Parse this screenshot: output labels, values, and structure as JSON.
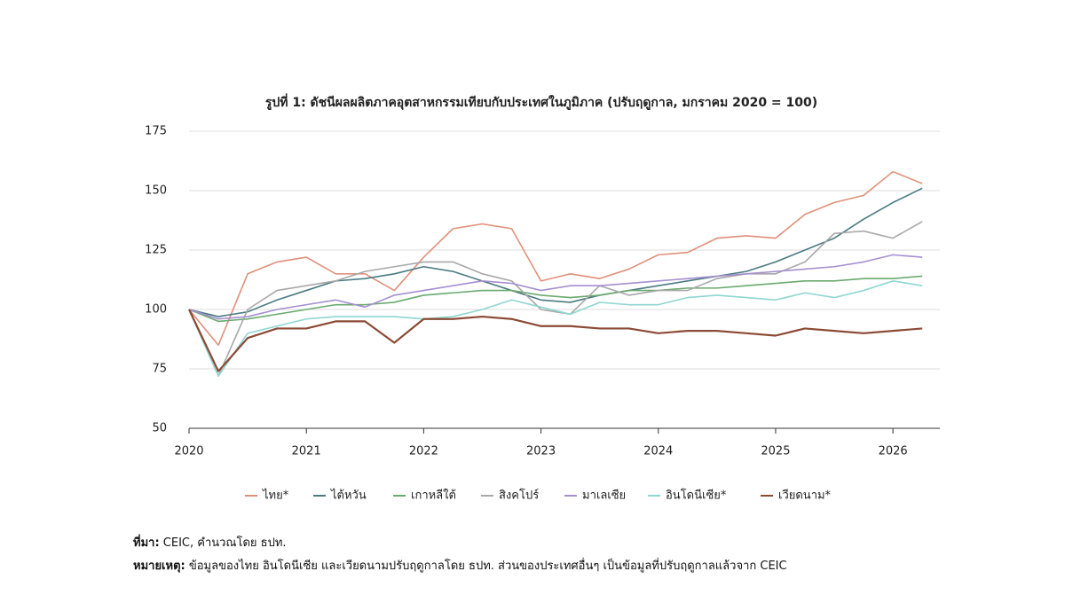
{
  "chart_data": {
    "type": "line",
    "title": "รูปที่ 1: ดัชนีผลผลิตภาคอุตสาหกรรมเทียบกับประเทศในภูมิภาค (ปรับฤดูกาล, มกราคม 2020 = 100)",
    "x": [
      2020,
      2020.25,
      2020.5,
      2020.75,
      2021,
      2021.25,
      2021.5,
      2021.75,
      2022,
      2022.25,
      2022.5,
      2022.75,
      2023,
      2023.25,
      2023.5,
      2023.75,
      2024,
      2024.25,
      2024.5,
      2024.75,
      2025,
      2025.25,
      2025.5,
      2025.75,
      2026,
      2026.25
    ],
    "xlim": [
      2020,
      2026.4
    ],
    "xticks": [
      2020,
      2021,
      2022,
      2023,
      2024,
      2025,
      2026
    ],
    "ylim": [
      50,
      175
    ],
    "yticks": [
      50,
      75,
      100,
      125,
      150,
      175
    ],
    "grid": true,
    "legend": "bottom",
    "series": [
      {
        "name": "ไทย*",
        "color": "#e0907a",
        "values": [
          100,
          85,
          115,
          120,
          122,
          115,
          115,
          108,
          122,
          134,
          136,
          134,
          112,
          115,
          113,
          117,
          123,
          124,
          130,
          131,
          130,
          140,
          145,
          148,
          158,
          153
        ]
      },
      {
        "name": "ไต้หวัน",
        "color": "#4a7a80",
        "values": [
          100,
          97,
          99,
          104,
          108,
          112,
          113,
          115,
          118,
          116,
          112,
          108,
          104,
          103,
          106,
          108,
          110,
          112,
          114,
          116,
          120,
          125,
          130,
          138,
          145,
          151
        ]
      },
      {
        "name": "เกาหลีใต้",
        "color": "#6aaa6e",
        "values": [
          100,
          95,
          96,
          98,
          100,
          102,
          102,
          103,
          106,
          107,
          108,
          108,
          106,
          105,
          106,
          108,
          108,
          109,
          109,
          110,
          111,
          112,
          112,
          113,
          113,
          114
        ]
      },
      {
        "name": "สิงคโปร์",
        "color": "#a8a8a8",
        "values": [
          100,
          72,
          100,
          108,
          110,
          112,
          116,
          118,
          120,
          120,
          115,
          112,
          100,
          98,
          110,
          106,
          108,
          108,
          113,
          115,
          115,
          120,
          132,
          133,
          130,
          137
        ]
      },
      {
        "name": "มาเลเซีย",
        "color": "#a58fd0",
        "values": [
          100,
          96,
          97,
          100,
          102,
          104,
          101,
          106,
          108,
          110,
          112,
          111,
          108,
          110,
          110,
          111,
          112,
          113,
          114,
          115,
          116,
          117,
          118,
          120,
          123,
          122
        ]
      },
      {
        "name": "อินโดนีเซีย*",
        "color": "#8fd6d0",
        "values": [
          100,
          72,
          90,
          93,
          96,
          97,
          97,
          97,
          96,
          97,
          100,
          104,
          101,
          98,
          103,
          102,
          102,
          105,
          106,
          105,
          104,
          107,
          105,
          108,
          112,
          110
        ]
      },
      {
        "name": "เวียดนาม*",
        "color": "#8b4a35",
        "values": [
          100,
          74,
          88,
          92,
          92,
          95,
          95,
          86,
          96,
          96,
          97,
          96,
          93,
          93,
          92,
          92,
          90,
          91,
          91,
          90,
          89,
          92,
          91,
          90,
          91,
          92
        ]
      }
    ]
  },
  "notes": {
    "source_label": "ที่มา:",
    "source_text": "CEIC, คำนวณโดย ธปท.",
    "note_label": "หมายเหตุ:",
    "note_text": "ข้อมูลของไทย อินโดนีเซีย และเวียดนามปรับฤดูกาลโดย ธปท. ส่วนของประเทศอื่นๆ เป็นข้อมูลที่ปรับฤดูกาลแล้วจาก CEIC"
  }
}
